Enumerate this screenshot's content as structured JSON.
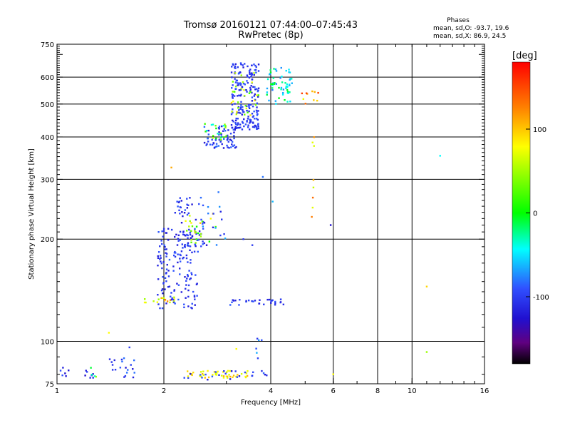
{
  "chart_data": {
    "type": "scatter",
    "title": "Tromsø 20160121 07:44:00–07:45:43",
    "subtitle": "RwPretec (8p)",
    "xlabel": "Frequency [MHz]",
    "ylabel": "Stationary phase Virtual Height [km]",
    "x_scale": "log",
    "y_scale": "log",
    "xlim": [
      1,
      16
    ],
    "ylim": [
      75,
      750
    ],
    "x_ticks": [
      1,
      2,
      4,
      6,
      8,
      10,
      16
    ],
    "x_tick_labels": [
      "1",
      "2",
      "4",
      "6",
      "8",
      "10",
      "16"
    ],
    "x_grid": [
      2,
      4,
      6,
      8,
      10
    ],
    "y_ticks": [
      75,
      100,
      200,
      300,
      400,
      500,
      600,
      750
    ],
    "y_tick_labels": [
      "75",
      "100",
      "200",
      "300",
      "400",
      "500",
      "600",
      "750"
    ],
    "y_grid": [
      100,
      200,
      300,
      400,
      500,
      600
    ],
    "annotation": {
      "title": "Phases",
      "lines": [
        "mean, sd,O: -93.7, 19.6",
        "mean, sd,X:  86.9, 24.5"
      ]
    },
    "colorbar": {
      "label": "[deg]",
      "range": [
        -180,
        180
      ],
      "ticks": [
        100,
        0,
        -100
      ],
      "tick_labels": [
        "100",
        "0",
        "-100"
      ]
    },
    "clusters": [
      {
        "x": [
          1.02,
          1.08
        ],
        "y": [
          78,
          84
        ],
        "n": 6,
        "phase": -110,
        "phase_sd": 20
      },
      {
        "x": [
          1.18,
          1.28
        ],
        "y": [
          78,
          82
        ],
        "n": 8,
        "phase": -105,
        "phase_sd": 20
      },
      {
        "x": [
          1.4,
          1.75
        ],
        "y": [
          78,
          92
        ],
        "n": 20,
        "phase": -100,
        "phase_sd": 25
      },
      {
        "x": [
          1.22,
          1.32
        ],
        "y": [
          78,
          84
        ],
        "n": 4,
        "phase": 30,
        "phase_sd": 60
      },
      {
        "x": [
          1.75,
          2.15
        ],
        "y": [
          130,
          135
        ],
        "n": 18,
        "phase": 100,
        "phase_sd": 40
      },
      {
        "x": [
          1.92,
          2.5
        ],
        "y": [
          125,
          215
        ],
        "n": 150,
        "phase": -100,
        "phase_sd": 15
      },
      {
        "x": [
          2.15,
          2.6
        ],
        "y": [
          190,
          265
        ],
        "n": 60,
        "phase": -100,
        "phase_sd": 20
      },
      {
        "x": [
          2.3,
          2.8
        ],
        "y": [
          195,
          240
        ],
        "n": 25,
        "phase": 60,
        "phase_sd": 60
      },
      {
        "x": [
          2.55,
          3.0
        ],
        "y": [
          190,
          260
        ],
        "n": 15,
        "phase": -90,
        "phase_sd": 30
      },
      {
        "x": [
          2.3,
          3.6
        ],
        "y": [
          78,
          82
        ],
        "n": 45,
        "phase": 100,
        "phase_sd": 20
      },
      {
        "x": [
          2.2,
          3.9
        ],
        "y": [
          77,
          82
        ],
        "n": 25,
        "phase": -100,
        "phase_sd": 20
      },
      {
        "x": [
          3.05,
          4.5
        ],
        "y": [
          128,
          133
        ],
        "n": 30,
        "phase": -100,
        "phase_sd": 15
      },
      {
        "x": [
          2.6,
          3.2
        ],
        "y": [
          370,
          430
        ],
        "n": 70,
        "phase": -100,
        "phase_sd": 20
      },
      {
        "x": [
          2.6,
          3.0
        ],
        "y": [
          390,
          440
        ],
        "n": 20,
        "phase": 20,
        "phase_sd": 60
      },
      {
        "x": [
          3.1,
          3.7
        ],
        "y": [
          420,
          660
        ],
        "n": 200,
        "phase": -100,
        "phase_sd": 15
      },
      {
        "x": [
          3.1,
          3.7
        ],
        "y": [
          460,
          620
        ],
        "n": 30,
        "phase": 60,
        "phase_sd": 50
      },
      {
        "x": [
          3.9,
          4.6
        ],
        "y": [
          500,
          640
        ],
        "n": 60,
        "phase": -40,
        "phase_sd": 40
      },
      {
        "x": [
          4.8,
          5.5
        ],
        "y": [
          500,
          560
        ],
        "n": 10,
        "phase": 120,
        "phase_sd": 40
      },
      {
        "x": [
          5.2,
          5.3
        ],
        "y": [
          220,
          420
        ],
        "n": 8,
        "phase": 100,
        "phase_sd": 40
      },
      {
        "x": [
          3.6,
          3.8
        ],
        "y": [
          88,
          102
        ],
        "n": 6,
        "phase": -80,
        "phase_sd": 30
      }
    ],
    "points": [
      {
        "x": 12.0,
        "y": 352,
        "phase": -40
      },
      {
        "x": 11.0,
        "y": 145,
        "phase": 110
      },
      {
        "x": 11.0,
        "y": 93,
        "phase": 60
      },
      {
        "x": 6.0,
        "y": 80,
        "phase": 100
      },
      {
        "x": 5.9,
        "y": 220,
        "phase": -120
      },
      {
        "x": 1.4,
        "y": 106,
        "phase": 100
      },
      {
        "x": 1.6,
        "y": 96,
        "phase": -100
      },
      {
        "x": 3.8,
        "y": 305,
        "phase": -80
      },
      {
        "x": 4.05,
        "y": 258,
        "phase": -60
      },
      {
        "x": 2.1,
        "y": 325,
        "phase": 120
      },
      {
        "x": 3.2,
        "y": 95,
        "phase": 100
      },
      {
        "x": 3.35,
        "y": 200,
        "phase": -100
      },
      {
        "x": 3.55,
        "y": 192,
        "phase": -100
      },
      {
        "x": 2.85,
        "y": 275,
        "phase": -80
      }
    ]
  }
}
